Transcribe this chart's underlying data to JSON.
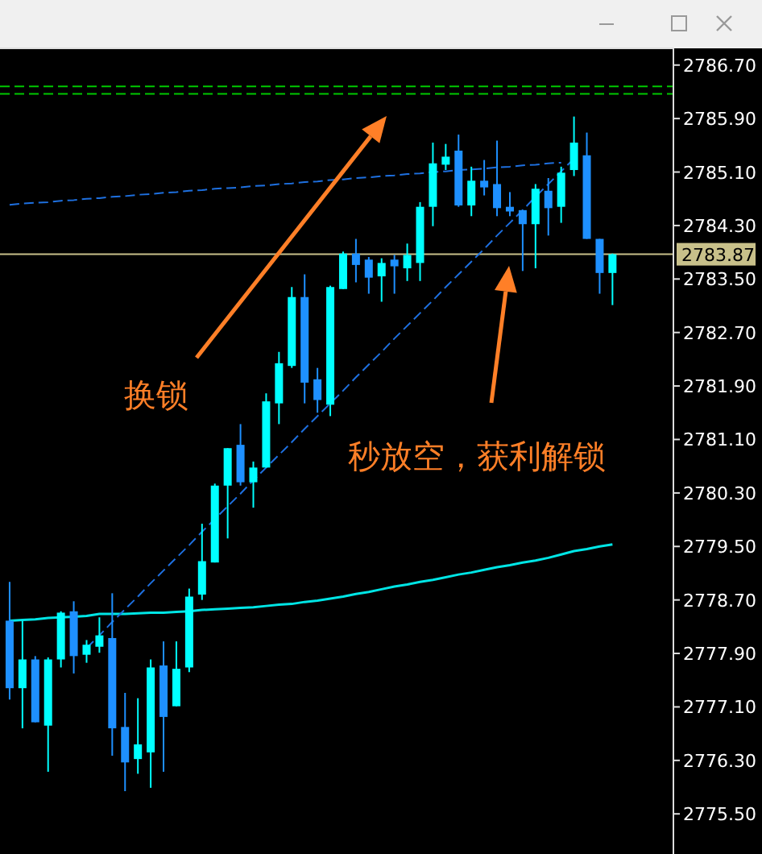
{
  "chart_data": {
    "type": "candlestick",
    "categories": [
      null,
      null,
      null,
      null,
      null,
      null,
      null,
      null,
      null,
      null,
      null,
      null,
      null,
      null,
      null,
      null,
      null,
      null,
      null,
      null,
      null,
      null,
      null,
      null,
      null,
      null,
      null,
      null,
      null,
      null,
      null,
      null,
      null,
      null,
      null,
      null,
      null,
      null,
      null,
      null,
      null,
      null,
      null,
      null,
      null,
      null,
      null,
      null
    ],
    "ohlc": [
      [
        2778.39,
        2778.97,
        2777.21,
        2777.38
      ],
      [
        2777.38,
        2778.39,
        2776.78,
        2777.81
      ],
      [
        2777.81,
        2777.86,
        2776.87,
        2776.87
      ],
      [
        2776.82,
        2777.84,
        2776.13,
        2777.81
      ],
      [
        2777.81,
        2778.53,
        2777.69,
        2778.51
      ],
      [
        2778.53,
        2778.68,
        2777.6,
        2777.86
      ],
      [
        2777.88,
        2778.1,
        2777.76,
        2778.03
      ],
      [
        2778.0,
        2778.44,
        2777.91,
        2778.17
      ],
      [
        2778.13,
        2778.8,
        2776.37,
        2776.78
      ],
      [
        2776.8,
        2777.31,
        2775.84,
        2776.27
      ],
      [
        2776.32,
        2777.23,
        2776.1,
        2776.54
      ],
      [
        2776.42,
        2777.81,
        2775.89,
        2777.69
      ],
      [
        2777.72,
        2778.08,
        2776.13,
        2776.95
      ],
      [
        2777.11,
        2778.08,
        2777.11,
        2777.67
      ],
      [
        2777.69,
        2778.87,
        2777.62,
        2778.75
      ],
      [
        2778.78,
        2779.84,
        2778.7,
        2779.28
      ],
      [
        2779.26,
        2780.44,
        2779.26,
        2780.41
      ],
      [
        2780.41,
        2780.97,
        2779.62,
        2780.97
      ],
      [
        2781.02,
        2781.33,
        2780.41,
        2780.46
      ],
      [
        2780.46,
        2780.77,
        2780.08,
        2780.68
      ],
      [
        2780.68,
        2781.79,
        2780.68,
        2781.67
      ],
      [
        2781.64,
        2782.41,
        2781.33,
        2782.24
      ],
      [
        2782.2,
        2783.38,
        2782.17,
        2783.23
      ],
      [
        2783.23,
        2783.57,
        2781.64,
        2781.95
      ],
      [
        2782.0,
        2782.17,
        2781.5,
        2781.69
      ],
      [
        2781.62,
        2783.4,
        2781.45,
        2783.38
      ],
      [
        2783.35,
        2783.91,
        2783.35,
        2783.88
      ],
      [
        2783.88,
        2784.1,
        2783.45,
        2783.71
      ],
      [
        2783.79,
        2783.83,
        2783.28,
        2783.52
      ],
      [
        2783.54,
        2783.81,
        2783.16,
        2783.74
      ],
      [
        2783.79,
        2783.86,
        2783.28,
        2783.69
      ],
      [
        2783.66,
        2784.03,
        2783.47,
        2783.86
      ],
      [
        2783.74,
        2784.65,
        2783.47,
        2784.58
      ],
      [
        2784.58,
        2785.54,
        2784.29,
        2785.23
      ],
      [
        2785.21,
        2785.52,
        2785.13,
        2785.33
      ],
      [
        2785.42,
        2785.66,
        2784.58,
        2784.6
      ],
      [
        2784.6,
        2785.18,
        2784.44,
        2784.97
      ],
      [
        2784.97,
        2785.28,
        2784.75,
        2784.87
      ],
      [
        2784.92,
        2785.57,
        2784.44,
        2784.56
      ],
      [
        2784.58,
        2784.8,
        2784.44,
        2784.51
      ],
      [
        2784.53,
        2784.53,
        2783.62,
        2784.32
      ],
      [
        2784.32,
        2784.92,
        2783.66,
        2784.85
      ],
      [
        2784.82,
        2785.01,
        2784.15,
        2784.56
      ],
      [
        2784.58,
        2785.18,
        2784.34,
        2785.09
      ],
      [
        2785.13,
        2785.93,
        2785.04,
        2785.54
      ],
      [
        2785.35,
        2785.69,
        2784.1,
        2784.1
      ],
      [
        2784.1,
        2784.1,
        2783.28,
        2783.59
      ],
      [
        2783.59,
        2783.88,
        2783.11,
        2783.87
      ]
    ],
    "colors": [
      "#1e90ff",
      "#00ffff",
      "#1e90ff",
      "#00ffff",
      "#00ffff",
      "#1e90ff",
      "#00ffff",
      "#00ffff",
      "#1e90ff",
      "#1e90ff",
      "#00ffff",
      "#00ffff",
      "#1e90ff",
      "#00ffff",
      "#00ffff",
      "#00ffff",
      "#00ffff",
      "#00ffff",
      "#1e90ff",
      "#00ffff",
      "#00ffff",
      "#00ffff",
      "#00ffff",
      "#1e90ff",
      "#1e90ff",
      "#00ffff",
      "#00ffff",
      "#1e90ff",
      "#1e90ff",
      "#00ffff",
      "#1e90ff",
      "#00ffff",
      "#00ffff",
      "#00ffff",
      "#00ffff",
      "#1e90ff",
      "#00ffff",
      "#1e90ff",
      "#1e90ff",
      "#1e90ff",
      "#1e90ff",
      "#00ffff",
      "#1e90ff",
      "#00ffff",
      "#00ffff",
      "#1e90ff",
      "#1e90ff",
      "#00ffff"
    ],
    "series": [
      {
        "type": "line",
        "color": "#00e5e5",
        "values": [
          2778.39,
          2778.4,
          2778.41,
          2778.43,
          2778.44,
          2778.45,
          2778.46,
          2778.49,
          2778.49,
          2778.49,
          2778.5,
          2778.51,
          2778.51,
          2778.52,
          2778.53,
          2778.55,
          2778.56,
          2778.57,
          2778.58,
          2778.59,
          2778.61,
          2778.63,
          2778.64,
          2778.67,
          2778.69,
          2778.72,
          2778.75,
          2778.79,
          2778.82,
          2778.86,
          2778.9,
          2778.93,
          2778.97,
          2779.0,
          2779.04,
          2779.08,
          2779.11,
          2779.15,
          2779.19,
          2779.22,
          2779.26,
          2779.29,
          2779.33,
          2779.38,
          2779.43,
          2779.46,
          2779.5,
          2779.53
        ]
      },
      {
        "type": "line",
        "color": "#1e70e0",
        "line_style": "dashed",
        "values": [
          2784.61,
          2784.63,
          2784.64,
          2784.65,
          2784.67,
          2784.68,
          2784.7,
          2784.71,
          2784.73,
          2784.74,
          2784.76,
          2784.77,
          2784.79,
          2784.8,
          2784.82,
          2784.83,
          2784.85,
          2784.86,
          2784.87,
          2784.89,
          2784.9,
          2784.92,
          2784.93,
          2784.95,
          2784.96,
          2784.98,
          2784.99,
          2785.01,
          2785.02,
          2785.04,
          2785.05,
          2785.07,
          2785.08,
          2785.1,
          2785.11,
          2785.13,
          2785.14,
          2785.15,
          2785.17,
          2785.18,
          2785.2,
          2785.21,
          2785.23,
          2785.24,
          null,
          null,
          null,
          null
        ]
      },
      {
        "type": "line",
        "color": "#1e70e0",
        "line_style": "dashed",
        "values": [
          null,
          null,
          null,
          null,
          null,
          null,
          2777.98,
          2778.17,
          2778.37,
          2778.56,
          2778.75,
          2778.95,
          2779.14,
          2779.33,
          2779.52,
          2779.72,
          2779.91,
          2780.1,
          2780.29,
          2780.49,
          2780.68,
          2780.87,
          2781.06,
          2781.26,
          2781.45,
          2781.64,
          2781.83,
          2782.03,
          2782.22,
          2782.41,
          2782.61,
          2782.8,
          2782.99,
          2783.18,
          2783.38,
          2783.57,
          2783.76,
          2783.95,
          2784.15,
          2784.34,
          2784.53,
          2784.73,
          2784.92,
          2785.11,
          2785.3,
          null,
          null,
          null
        ]
      }
    ],
    "ref_lines": [
      {
        "axis": "y",
        "value": 2783.87,
        "label": "2783.87",
        "color": "#c8c08a"
      },
      {
        "axis": "y",
        "value": 2786.38,
        "color": "#00c800",
        "line_style": "dashed"
      },
      {
        "axis": "y",
        "value": 2786.27,
        "color": "#00c800",
        "line_style": "dashed"
      }
    ],
    "annotations": [
      "换锁",
      "秒放空，获利解锁"
    ],
    "ylim": [
      2774.9,
      2786.95
    ],
    "yticks": [
      {
        "value": 2786.7,
        "label": "2786.70"
      },
      {
        "value": 2785.9,
        "label": "2785.90"
      },
      {
        "value": 2785.1,
        "label": "2785.10"
      },
      {
        "value": 2784.3,
        "label": "2784.30"
      },
      {
        "value": 2783.5,
        "label": "2783.50"
      },
      {
        "value": 2782.7,
        "label": "2782.70"
      },
      {
        "value": 2781.9,
        "label": "2781.90"
      },
      {
        "value": 2781.1,
        "label": "2781.10"
      },
      {
        "value": 2780.3,
        "label": "2780.30"
      },
      {
        "value": 2779.5,
        "label": "2779.50"
      },
      {
        "value": 2778.7,
        "label": "2778.70"
      },
      {
        "value": 2777.9,
        "label": "2777.90"
      },
      {
        "value": 2777.1,
        "label": "2777.10"
      },
      {
        "value": 2776.3,
        "label": "2776.30"
      },
      {
        "value": 2775.5,
        "label": "2775.50"
      }
    ],
    "tick_labels": "y"
  }
}
